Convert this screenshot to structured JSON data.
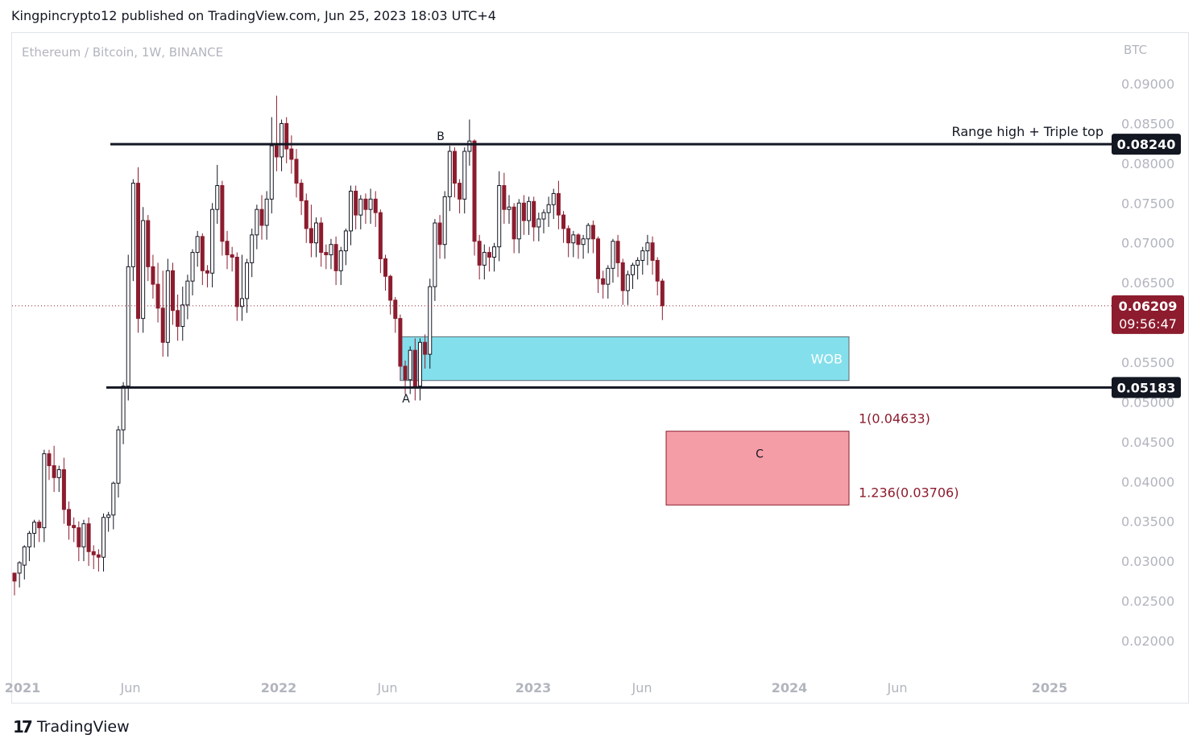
{
  "header": {
    "published_line": "Kingpincrypto12 published on TradingView.com, Jun 25, 2023 18:03 UTC+4"
  },
  "footer": {
    "brand": "TradingView",
    "logo_icon": "tradingview-logo-icon"
  },
  "chart_data": {
    "type": "candlestick",
    "symbol_title": "Ethereum / Bitcoin, 1W, BINANCE",
    "currency_label": "BTC",
    "ylim": [
      0.0165,
      0.0929
    ],
    "y_ticks": [
      "0.09000",
      "0.08500",
      "0.08000",
      "0.07500",
      "0.07000",
      "0.06500",
      "0.05500",
      "0.05000",
      "0.04500",
      "0.04000",
      "0.03500",
      "0.03000",
      "0.02500",
      "0.02000"
    ],
    "x_tick_labels": [
      "2021",
      "Jun",
      "2022",
      "Jun",
      "2023",
      "Jun",
      "2024",
      "Jun",
      "2025"
    ],
    "colors": {
      "up": "#ffffff",
      "up_border": "#131722",
      "down": "#8c1c2e",
      "wob": "#84dfec",
      "target": "#f59da6",
      "price_badge": "#8c1c2e"
    },
    "candles": [
      [
        0.0285,
        0.0275,
        0.0285
      ],
      [
        0.0285,
        0.0298,
        0.03
      ],
      [
        0.0295,
        0.0318,
        0.032
      ],
      [
        0.0318,
        0.0335,
        0.0338
      ],
      [
        0.0335,
        0.0349,
        0.0352
      ],
      [
        0.0349,
        0.0342,
        0.0352
      ],
      [
        0.0342,
        0.0435,
        0.044
      ],
      [
        0.0435,
        0.042,
        0.044
      ],
      [
        0.042,
        0.0405,
        0.0445
      ],
      [
        0.0405,
        0.0415,
        0.042
      ],
      [
        0.0415,
        0.0365,
        0.043
      ],
      [
        0.0365,
        0.0345,
        0.0375
      ],
      [
        0.0345,
        0.0342,
        0.0355
      ],
      [
        0.0342,
        0.0318,
        0.035
      ],
      [
        0.0318,
        0.0347,
        0.0352
      ],
      [
        0.0347,
        0.0312,
        0.0355
      ],
      [
        0.0312,
        0.0308,
        0.032
      ],
      [
        0.0308,
        0.0305,
        0.0315
      ],
      [
        0.0305,
        0.0355,
        0.036
      ],
      [
        0.0355,
        0.0358,
        0.0362
      ],
      [
        0.0358,
        0.0398,
        0.04
      ],
      [
        0.0398,
        0.0465,
        0.047
      ],
      [
        0.0465,
        0.052,
        0.0525
      ],
      [
        0.052,
        0.067,
        0.0685
      ],
      [
        0.067,
        0.0775,
        0.078
      ],
      [
        0.0775,
        0.0605,
        0.0795
      ],
      [
        0.0605,
        0.0728,
        0.0745
      ],
      [
        0.0728,
        0.067,
        0.0735
      ],
      [
        0.067,
        0.0648,
        0.0685
      ],
      [
        0.0648,
        0.0618,
        0.0675
      ],
      [
        0.0618,
        0.0575,
        0.0665
      ],
      [
        0.0575,
        0.0665,
        0.068
      ],
      [
        0.0665,
        0.0615,
        0.0675
      ],
      [
        0.0615,
        0.0595,
        0.0635
      ],
      [
        0.0595,
        0.0622,
        0.0645
      ],
      [
        0.0622,
        0.0652,
        0.066
      ],
      [
        0.0652,
        0.0688,
        0.0692
      ],
      [
        0.0688,
        0.0708,
        0.0715
      ],
      [
        0.0708,
        0.0665,
        0.0712
      ],
      [
        0.0665,
        0.0662,
        0.0672
      ],
      [
        0.0662,
        0.0742,
        0.075
      ],
      [
        0.0742,
        0.0772,
        0.0798
      ],
      [
        0.0772,
        0.0702,
        0.0778
      ],
      [
        0.0702,
        0.0685,
        0.0715
      ],
      [
        0.0685,
        0.0682,
        0.0695
      ],
      [
        0.0682,
        0.062,
        0.0688
      ],
      [
        0.062,
        0.063,
        0.0685
      ],
      [
        0.063,
        0.0675,
        0.068
      ],
      [
        0.0675,
        0.071,
        0.0718
      ],
      [
        0.071,
        0.0742,
        0.0748
      ],
      [
        0.0742,
        0.0722,
        0.076
      ],
      [
        0.0722,
        0.0755,
        0.0765
      ],
      [
        0.0755,
        0.0822,
        0.0858
      ],
      [
        0.0822,
        0.0808,
        0.0885
      ],
      [
        0.0808,
        0.085,
        0.0855
      ],
      [
        0.085,
        0.0818,
        0.0858
      ],
      [
        0.0818,
        0.0805,
        0.0835
      ],
      [
        0.0805,
        0.0775,
        0.0818
      ],
      [
        0.0775,
        0.0753,
        0.078
      ],
      [
        0.0753,
        0.0718,
        0.0762
      ],
      [
        0.0718,
        0.07,
        0.0748
      ],
      [
        0.07,
        0.0725,
        0.0732
      ],
      [
        0.0725,
        0.0688,
        0.0732
      ],
      [
        0.0688,
        0.0685,
        0.0698
      ],
      [
        0.0685,
        0.0698,
        0.0705
      ],
      [
        0.0698,
        0.0665,
        0.0708
      ],
      [
        0.0665,
        0.069,
        0.0695
      ],
      [
        0.069,
        0.0715,
        0.0718
      ],
      [
        0.0715,
        0.0765,
        0.0772
      ],
      [
        0.0765,
        0.0735,
        0.0772
      ],
      [
        0.0735,
        0.0755,
        0.076
      ],
      [
        0.0755,
        0.0742,
        0.0762
      ],
      [
        0.0742,
        0.0755,
        0.0768
      ],
      [
        0.0755,
        0.0738,
        0.0765
      ],
      [
        0.0738,
        0.068,
        0.0742
      ],
      [
        0.068,
        0.0658,
        0.0685
      ],
      [
        0.0658,
        0.0628,
        0.066
      ],
      [
        0.0628,
        0.0605,
        0.0632
      ],
      [
        0.0605,
        0.0545,
        0.061
      ],
      [
        0.0545,
        0.0528,
        0.0552
      ],
      [
        0.0528,
        0.0565,
        0.057
      ],
      [
        0.0565,
        0.052,
        0.058
      ],
      [
        0.052,
        0.0575,
        0.058
      ],
      [
        0.0575,
        0.056,
        0.0585
      ],
      [
        0.056,
        0.0645,
        0.0655
      ],
      [
        0.0645,
        0.0725,
        0.073
      ],
      [
        0.0725,
        0.0698,
        0.0735
      ],
      [
        0.0698,
        0.0758,
        0.0765
      ],
      [
        0.0758,
        0.0815,
        0.0822
      ],
      [
        0.0815,
        0.0775,
        0.082
      ],
      [
        0.0775,
        0.0755,
        0.078
      ],
      [
        0.0755,
        0.0815,
        0.082
      ],
      [
        0.0815,
        0.0828,
        0.0855
      ],
      [
        0.0828,
        0.0702,
        0.083
      ],
      [
        0.0702,
        0.0672,
        0.071
      ],
      [
        0.0672,
        0.0688,
        0.0698
      ],
      [
        0.0688,
        0.0682,
        0.0695
      ],
      [
        0.0682,
        0.0695,
        0.07
      ],
      [
        0.0695,
        0.0772,
        0.079
      ],
      [
        0.0772,
        0.0742,
        0.0788
      ],
      [
        0.0742,
        0.0745,
        0.076
      ],
      [
        0.0745,
        0.0705,
        0.075
      ],
      [
        0.0705,
        0.075,
        0.0755
      ],
      [
        0.075,
        0.0728,
        0.076
      ],
      [
        0.0728,
        0.0752,
        0.0758
      ],
      [
        0.0752,
        0.072,
        0.0758
      ],
      [
        0.072,
        0.073,
        0.0738
      ],
      [
        0.073,
        0.0738,
        0.0742
      ],
      [
        0.0738,
        0.0748,
        0.0758
      ],
      [
        0.0748,
        0.0762,
        0.0768
      ],
      [
        0.0762,
        0.0735,
        0.0778
      ],
      [
        0.0735,
        0.0718,
        0.074
      ],
      [
        0.0718,
        0.07,
        0.0722
      ],
      [
        0.07,
        0.071,
        0.0715
      ],
      [
        0.071,
        0.0698,
        0.0712
      ],
      [
        0.0698,
        0.0705,
        0.071
      ],
      [
        0.0705,
        0.0722,
        0.0725
      ],
      [
        0.0722,
        0.0705,
        0.0728
      ],
      [
        0.0705,
        0.0655,
        0.0708
      ],
      [
        0.0655,
        0.0648,
        0.0665
      ],
      [
        0.0648,
        0.0668,
        0.0672
      ],
      [
        0.0668,
        0.0702,
        0.0705
      ],
      [
        0.0702,
        0.0675,
        0.071
      ],
      [
        0.0675,
        0.064,
        0.068
      ],
      [
        0.064,
        0.066,
        0.0665
      ],
      [
        0.066,
        0.0672,
        0.0675
      ],
      [
        0.0672,
        0.0678,
        0.0682
      ],
      [
        0.0678,
        0.069,
        0.0695
      ],
      [
        0.069,
        0.07,
        0.071
      ],
      [
        0.07,
        0.0678,
        0.0708
      ],
      [
        0.0678,
        0.0652,
        0.0682
      ],
      [
        0.0652,
        0.0621,
        0.0655
      ]
    ],
    "annotations": {
      "range_high": {
        "value": 0.0824,
        "label": "Range high + Triple top",
        "badge": "0.08240"
      },
      "range_low": {
        "value": 0.05183,
        "badge": "0.05183"
      },
      "current_price": {
        "value": 0.06209,
        "badge": "0.06209",
        "countdown": "09:56:47"
      },
      "wob": {
        "label": "WOB",
        "top": 0.0582,
        "bottom": 0.0527
      },
      "target_box": {
        "label": "C",
        "top": 0.04633,
        "bottom": 0.03706,
        "fib_top_label": "1(0.04633)",
        "fib_bottom_label": "1.236(0.03706)"
      },
      "point_a": "A",
      "point_b": "B"
    }
  }
}
